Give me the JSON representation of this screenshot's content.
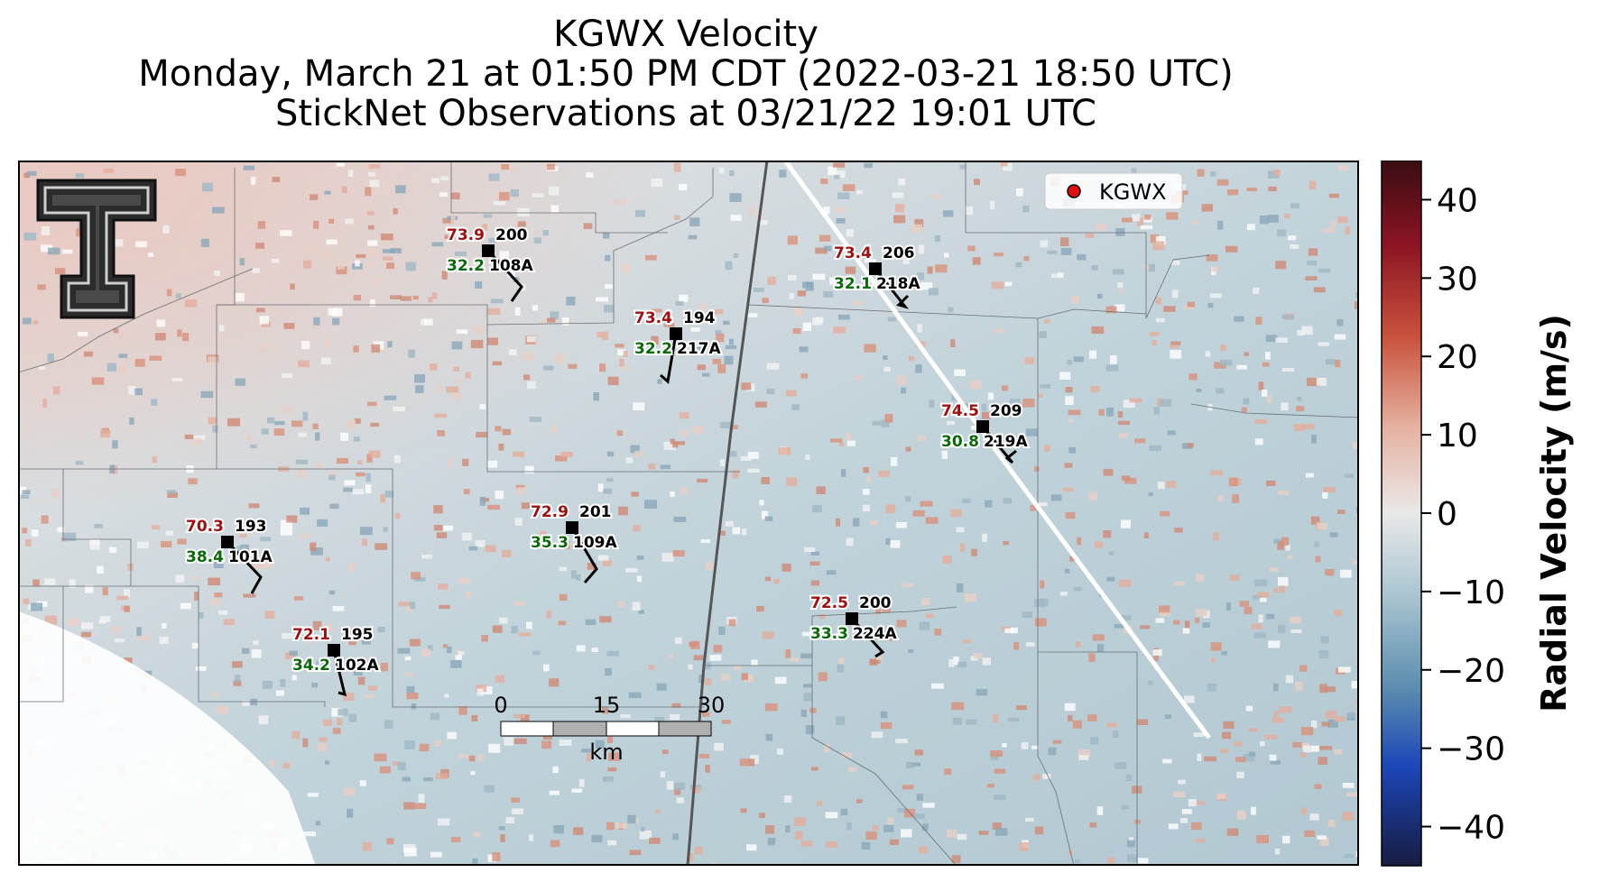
{
  "title": {
    "line1": "KGWX Velocity",
    "line2": "Monday, March 21 at 01:50 PM CDT (2022-03-21 18:50 UTC)",
    "line3": "StickNet Observations at 03/21/22 19:01 UTC"
  },
  "legend": {
    "label": "KGWX",
    "marker_color": "#e01010"
  },
  "logo": {
    "letter": "T"
  },
  "colorbar": {
    "label": "Radial Velocity (m/s)",
    "ticks": [
      "40",
      "30",
      "20",
      "10",
      "0",
      "−10",
      "−20",
      "−30",
      "−40"
    ],
    "range": [
      -45,
      45
    ]
  },
  "scale_bar": {
    "ticks": [
      "0",
      "15",
      "30"
    ],
    "unit": "km"
  },
  "stations": [
    {
      "id": "108A",
      "temp": "73.9",
      "dew": "32.2",
      "dir": "200"
    },
    {
      "id": "218A",
      "temp": "73.4",
      "dew": "32.1",
      "dir": "206"
    },
    {
      "id": "217A",
      "temp": "73.4",
      "dew": "32.2",
      "dir": "194"
    },
    {
      "id": "219A",
      "temp": "74.5",
      "dew": "30.8",
      "dir": "209"
    },
    {
      "id": "101A",
      "temp": "70.3",
      "dew": "38.4",
      "dir": "193"
    },
    {
      "id": "109A",
      "temp": "72.9",
      "dew": "35.3",
      "dir": "201"
    },
    {
      "id": "102A",
      "temp": "72.1",
      "dew": "34.2",
      "dir": "195"
    },
    {
      "id": "224A",
      "temp": "72.5",
      "dew": "33.3",
      "dir": "200"
    }
  ],
  "colors": {
    "temp_text": "#a01010",
    "dew_text": "#0a6a0a",
    "velocity_base": "#b8ccd4"
  }
}
